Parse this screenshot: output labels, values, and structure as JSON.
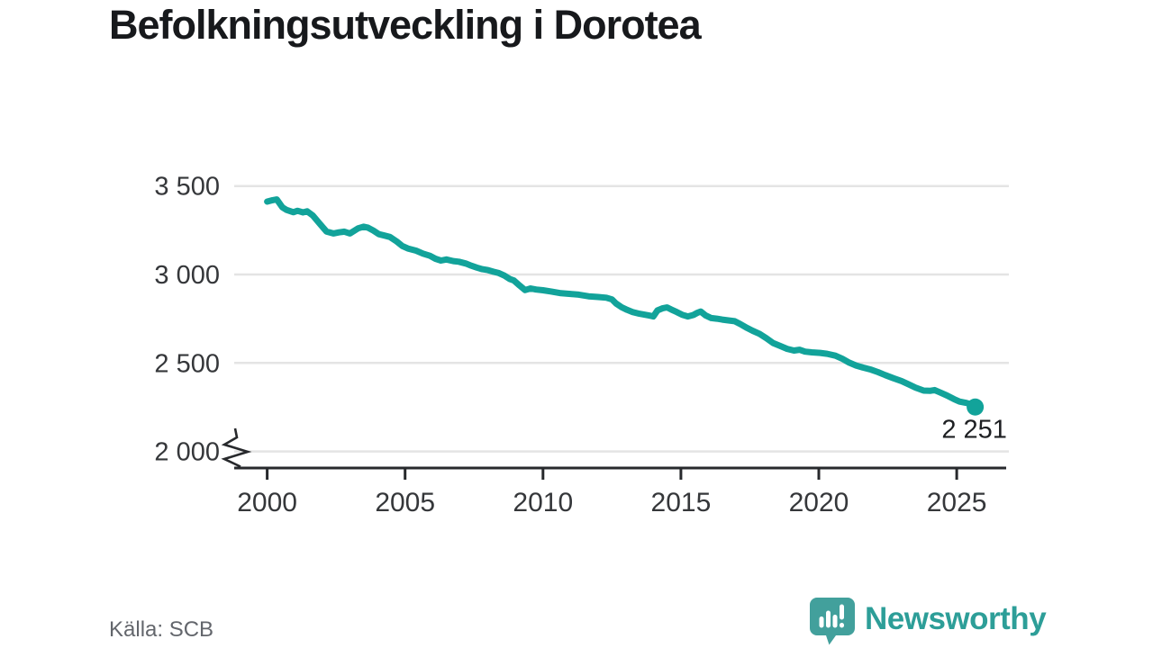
{
  "title": "Befolkningsutveckling i Dorotea",
  "source": "Källa: SCB",
  "logo": {
    "text": "Newsworthy",
    "icon": "newsworthy-bar-chart-bubble-icon"
  },
  "colors": {
    "line": "#12a39a",
    "point": "#12a39a",
    "grid": "#e4e4e4",
    "axis": "#27292c",
    "tick_label": "#35373a",
    "end_label": "#1d1f22",
    "title": "#17191c",
    "source": "#63666c",
    "logo_icon": "#42a09c",
    "logo_text": "#2d9e98",
    "background": "#ffffff"
  },
  "chart_data": {
    "type": "line",
    "title": "Befolkningsutveckling i Dorotea",
    "xlabel": "",
    "ylabel": "",
    "x_ticks": [
      2000,
      2005,
      2010,
      2015,
      2020,
      2025
    ],
    "y_ticks": [
      {
        "value": 3500,
        "label": "3 500"
      },
      {
        "value": 3000,
        "label": "3 000"
      },
      {
        "value": 2500,
        "label": "2 500"
      },
      {
        "value": 2000,
        "label": "2 000"
      }
    ],
    "xlim": [
      1998.8,
      2026.8
    ],
    "ylim": [
      2000,
      3500
    ],
    "axis_break_at_y_min": true,
    "grid": true,
    "end_point": {
      "x": 2025.67,
      "y": 2251,
      "label": "2 251"
    },
    "series": [
      {
        "name": "Befolkning",
        "points": [
          [
            2000.0,
            3412
          ],
          [
            2000.2,
            3420
          ],
          [
            2000.35,
            3424
          ],
          [
            2000.55,
            3380
          ],
          [
            2000.7,
            3365
          ],
          [
            2000.95,
            3352
          ],
          [
            2001.1,
            3360
          ],
          [
            2001.3,
            3351
          ],
          [
            2001.45,
            3357
          ],
          [
            2001.65,
            3334
          ],
          [
            2001.9,
            3288
          ],
          [
            2002.15,
            3243
          ],
          [
            2002.4,
            3232
          ],
          [
            2002.6,
            3238
          ],
          [
            2002.8,
            3242
          ],
          [
            2003.0,
            3232
          ],
          [
            2003.3,
            3261
          ],
          [
            2003.5,
            3270
          ],
          [
            2003.65,
            3265
          ],
          [
            2003.85,
            3248
          ],
          [
            2004.05,
            3228
          ],
          [
            2004.25,
            3220
          ],
          [
            2004.45,
            3212
          ],
          [
            2004.7,
            3186
          ],
          [
            2004.9,
            3161
          ],
          [
            2005.1,
            3147
          ],
          [
            2005.4,
            3135
          ],
          [
            2005.65,
            3118
          ],
          [
            2005.9,
            3106
          ],
          [
            2006.1,
            3089
          ],
          [
            2006.3,
            3079
          ],
          [
            2006.5,
            3085
          ],
          [
            2006.75,
            3076
          ],
          [
            2006.95,
            3072
          ],
          [
            2007.2,
            3062
          ],
          [
            2007.4,
            3050
          ],
          [
            2007.6,
            3039
          ],
          [
            2007.8,
            3030
          ],
          [
            2008.0,
            3025
          ],
          [
            2008.2,
            3016
          ],
          [
            2008.4,
            3008
          ],
          [
            2008.6,
            2994
          ],
          [
            2008.8,
            2974
          ],
          [
            2008.95,
            2966
          ],
          [
            2009.15,
            2938
          ],
          [
            2009.35,
            2912
          ],
          [
            2009.55,
            2921
          ],
          [
            2009.75,
            2915
          ],
          [
            2010.0,
            2911
          ],
          [
            2010.3,
            2904
          ],
          [
            2010.65,
            2894
          ],
          [
            2011.0,
            2890
          ],
          [
            2011.3,
            2886
          ],
          [
            2011.65,
            2877
          ],
          [
            2012.0,
            2873
          ],
          [
            2012.3,
            2869
          ],
          [
            2012.5,
            2859
          ],
          [
            2012.65,
            2836
          ],
          [
            2012.85,
            2815
          ],
          [
            2013.05,
            2800
          ],
          [
            2013.25,
            2788
          ],
          [
            2013.45,
            2780
          ],
          [
            2013.65,
            2774
          ],
          [
            2013.85,
            2768
          ],
          [
            2014.0,
            2763
          ],
          [
            2014.15,
            2797
          ],
          [
            2014.35,
            2810
          ],
          [
            2014.5,
            2814
          ],
          [
            2014.65,
            2802
          ],
          [
            2014.85,
            2788
          ],
          [
            2015.05,
            2772
          ],
          [
            2015.25,
            2763
          ],
          [
            2015.45,
            2771
          ],
          [
            2015.6,
            2784
          ],
          [
            2015.72,
            2791
          ],
          [
            2015.9,
            2768
          ],
          [
            2016.1,
            2754
          ],
          [
            2016.3,
            2750
          ],
          [
            2016.5,
            2745
          ],
          [
            2016.75,
            2740
          ],
          [
            2016.95,
            2736
          ],
          [
            2017.15,
            2720
          ],
          [
            2017.4,
            2698
          ],
          [
            2017.6,
            2682
          ],
          [
            2017.85,
            2665
          ],
          [
            2018.1,
            2640
          ],
          [
            2018.35,
            2612
          ],
          [
            2018.6,
            2596
          ],
          [
            2018.85,
            2580
          ],
          [
            2019.1,
            2570
          ],
          [
            2019.3,
            2575
          ],
          [
            2019.5,
            2564
          ],
          [
            2019.75,
            2560
          ],
          [
            2020.05,
            2557
          ],
          [
            2020.3,
            2552
          ],
          [
            2020.6,
            2541
          ],
          [
            2020.85,
            2524
          ],
          [
            2021.1,
            2502
          ],
          [
            2021.35,
            2486
          ],
          [
            2021.6,
            2474
          ],
          [
            2021.9,
            2462
          ],
          [
            2022.15,
            2448
          ],
          [
            2022.4,
            2432
          ],
          [
            2022.7,
            2414
          ],
          [
            2023.0,
            2398
          ],
          [
            2023.25,
            2380
          ],
          [
            2023.5,
            2361
          ],
          [
            2023.8,
            2344
          ],
          [
            2024.05,
            2343
          ],
          [
            2024.2,
            2347
          ],
          [
            2024.4,
            2333
          ],
          [
            2024.65,
            2316
          ],
          [
            2024.9,
            2296
          ],
          [
            2025.1,
            2282
          ],
          [
            2025.35,
            2274
          ],
          [
            2025.55,
            2265
          ],
          [
            2025.67,
            2251
          ]
        ]
      }
    ]
  }
}
